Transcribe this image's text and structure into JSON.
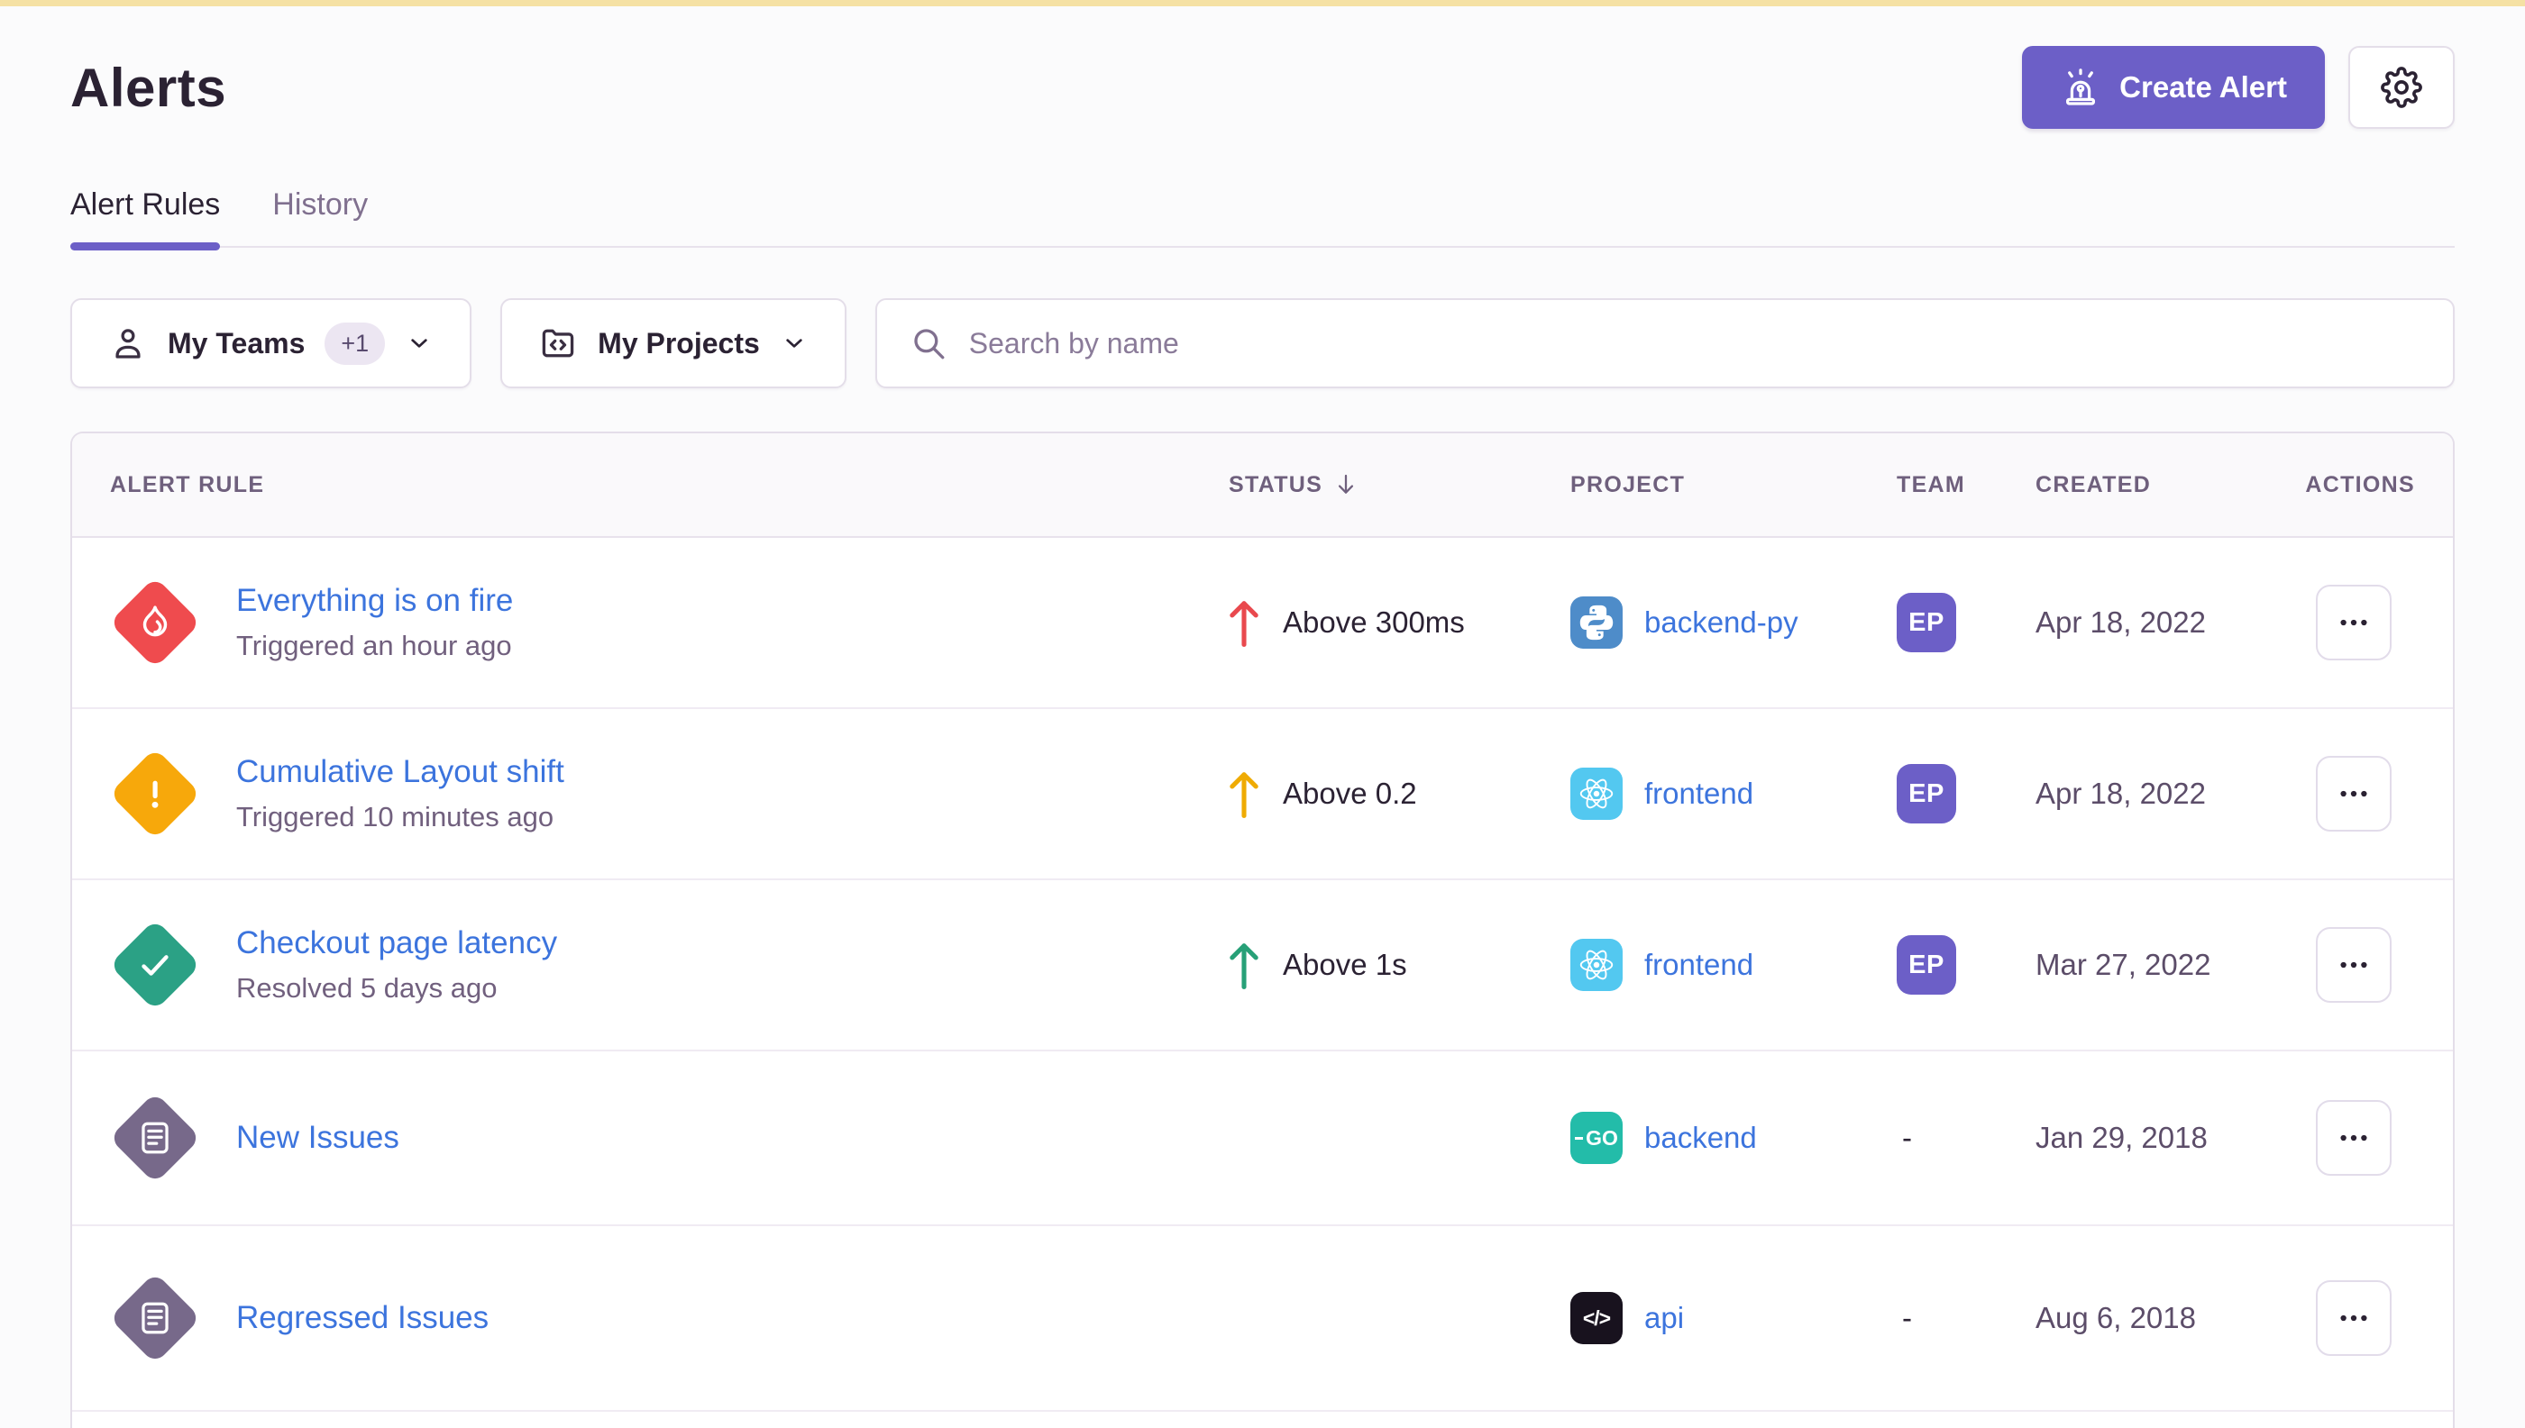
{
  "page": {
    "title": "Alerts"
  },
  "header": {
    "create_alert_label": "Create Alert"
  },
  "tabs": [
    {
      "label": "Alert Rules",
      "active": true
    },
    {
      "label": "History",
      "active": false
    }
  ],
  "filters": {
    "teams": {
      "label": "My Teams",
      "extra_count": "+1"
    },
    "projects": {
      "label": "My Projects"
    },
    "search": {
      "placeholder": "Search by name",
      "value": ""
    }
  },
  "table": {
    "columns": [
      "ALERT RULE",
      "STATUS",
      "PROJECT",
      "TEAM",
      "CREATED",
      "ACTIONS"
    ],
    "sorted_by": "STATUS",
    "sort_direction": "desc",
    "rows": [
      {
        "name": "Everything is on fire",
        "subtitle": "Triggered an hour ago",
        "severity": "critical",
        "status": "Above 300ms",
        "arrow": "red",
        "project": "backend-py",
        "platform": "python",
        "team": "EP",
        "created": "Apr 18, 2022"
      },
      {
        "name": "Cumulative Layout shift",
        "subtitle": "Triggered 10 minutes ago",
        "severity": "warning",
        "status": "Above 0.2",
        "arrow": "amber",
        "project": "frontend",
        "platform": "react",
        "team": "EP",
        "created": "Apr 18, 2022"
      },
      {
        "name": "Checkout page latency",
        "subtitle": "Resolved 5 days ago",
        "severity": "resolved",
        "status": "Above 1s",
        "arrow": "green",
        "project": "frontend",
        "platform": "react",
        "team": "EP",
        "created": "Mar 27, 2022"
      },
      {
        "name": "New Issues",
        "subtitle": "",
        "severity": "issue",
        "status": "",
        "arrow": "",
        "project": "backend",
        "platform": "go",
        "team": "-",
        "created": "Jan 29, 2018"
      },
      {
        "name": "Regressed Issues",
        "subtitle": "",
        "severity": "issue",
        "status": "",
        "arrow": "",
        "project": "api",
        "platform": "api",
        "team": "-",
        "created": "Aug 6, 2018"
      }
    ]
  },
  "colors": {
    "accent_purple": "#6C5FC7",
    "link_blue": "#3C74DD",
    "top_accent": "#F5E1A4",
    "severity": {
      "critical": "#EF4B4E",
      "warning": "#F7A80B",
      "resolved": "#2BA185",
      "issue": "#77698A"
    },
    "arrows": {
      "red": "#E9494E",
      "amber": "#EFAB03",
      "green": "#27A077"
    },
    "platforms": {
      "python": "#4E8CC9",
      "react": "#53C8F0",
      "go": "#23BCA9",
      "api": "#18121E"
    },
    "team_badge": "#6C5FC7"
  }
}
